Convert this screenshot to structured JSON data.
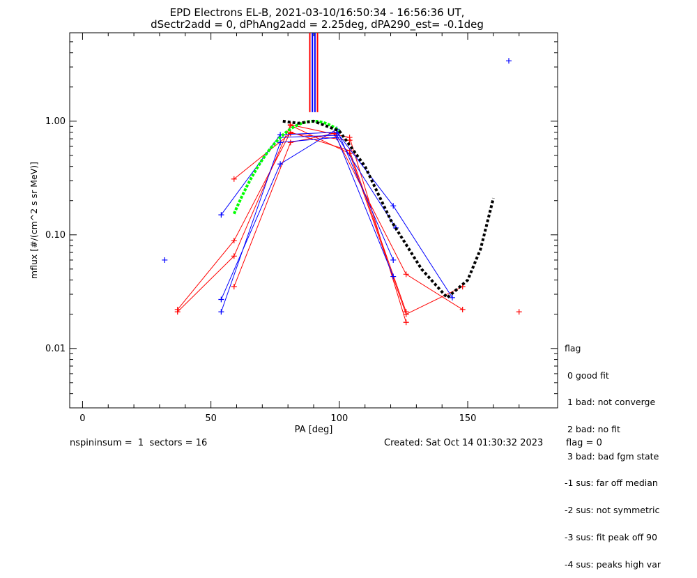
{
  "title_line1": "EPD Electrons EL-B, 2021-03-10/16:50:34 - 16:56:36 UT,",
  "title_line2": "dSectr2add = 0, dPhAng2add = 2.25deg, dPA290_est=  -0.1deg",
  "legend": {
    "title": "flag",
    "items": [
      " 0 good fit",
      " 1 bad: not converge",
      " 2 bad: no fit",
      " 3 bad: bad fgm state",
      "-1 sus: far off median",
      "-2 sus: not symmetric",
      "-3 sus: fit peak off 90",
      "-4 sus: peaks high var"
    ]
  },
  "footer": {
    "left": "nspininsum =  1  sectors = 16",
    "created": "Created: Sat Oct 14 01:30:32 2023",
    "flag": "flag = 0"
  },
  "colors": {
    "red": "#ff0000",
    "blue": "#0000ff",
    "green": "#00ff00",
    "black": "#000000"
  },
  "chart_data": {
    "type": "scatter",
    "xlabel": "PA [deg]",
    "ylabel": "mflux [#/(cm^2 s sr MeV)]",
    "xlim": [
      -5,
      185
    ],
    "ylim": [
      0.003,
      6
    ],
    "yscale": "log",
    "xticks": [
      0,
      50,
      100,
      150
    ],
    "yticks": [
      {
        "value": 0.01,
        "label": "0.01"
      },
      {
        "value": 0.1,
        "label": "0.10"
      },
      {
        "value": 1,
        "label": "1.00"
      }
    ],
    "vertical_markers": [
      {
        "x": 88.5,
        "color": "#ff0000"
      },
      {
        "x": 89.5,
        "color": "#0000ff"
      },
      {
        "x": 90.5,
        "color": "#0000ff"
      },
      {
        "x": 91.5,
        "color": "#ff0000"
      }
    ],
    "red_traces": [
      [
        [
          37,
          0.021
        ],
        [
          59,
          0.065
        ],
        [
          81,
          0.93
        ],
        [
          104,
          0.72
        ],
        [
          126,
          0.017
        ]
      ],
      [
        [
          37,
          0.022
        ],
        [
          59,
          0.089
        ],
        [
          81,
          0.8
        ],
        [
          104,
          0.55
        ],
        [
          126,
          0.021
        ]
      ],
      [
        [
          59,
          0.31
        ],
        [
          81,
          0.78
        ],
        [
          104,
          0.68
        ]
      ],
      [
        [
          59,
          0.035
        ],
        [
          81,
          0.65
        ],
        [
          98,
          0.78
        ],
        [
          126,
          0.045
        ],
        [
          148,
          0.022
        ]
      ],
      [
        [
          81,
          0.92
        ],
        [
          104,
          0.52
        ],
        [
          126,
          0.02
        ],
        [
          148,
          0.035
        ]
      ]
    ],
    "blue_traces": [
      [
        [
          54,
          0.15
        ],
        [
          77,
          0.76
        ],
        [
          99,
          0.8
        ],
        [
          121,
          0.18
        ],
        [
          144,
          0.028
        ]
      ],
      [
        [
          54,
          0.027
        ],
        [
          77,
          0.42
        ],
        [
          99,
          0.85
        ],
        [
          121,
          0.06
        ]
      ],
      [
        [
          54,
          0.021
        ],
        [
          77,
          0.65
        ],
        [
          99,
          0.72
        ],
        [
          121,
          0.043
        ]
      ],
      [
        [
          77,
          0.72
        ],
        [
          99,
          0.75
        ],
        [
          122,
          0.115
        ]
      ]
    ],
    "blue_points": [
      [
        32,
        0.06
      ],
      [
        166,
        3.4
      ]
    ],
    "red_points": [
      [
        170,
        0.021
      ]
    ],
    "green_fit": {
      "x": [
        59,
        100
      ],
      "amplitude": 1.0,
      "center": 90,
      "sigma": 16
    },
    "black_fit": {
      "x": [
        78,
        160
      ],
      "segments": [
        [
          78,
          1.0
        ],
        [
          84,
          0.96
        ],
        [
          90,
          1.0
        ],
        [
          100,
          0.82
        ],
        [
          110,
          0.4
        ],
        [
          120,
          0.135
        ],
        [
          132,
          0.05
        ],
        [
          142,
          0.028
        ],
        [
          150,
          0.04
        ],
        [
          155,
          0.075
        ],
        [
          160,
          0.21
        ]
      ]
    }
  }
}
